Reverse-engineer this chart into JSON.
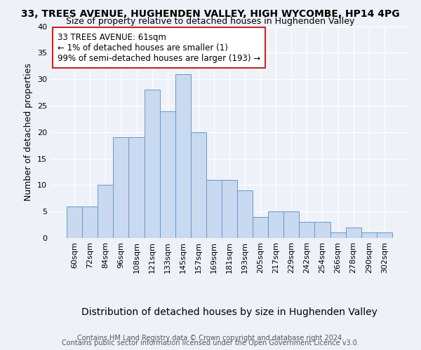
{
  "title": "33, TREES AVENUE, HUGHENDEN VALLEY, HIGH WYCOMBE, HP14 4PG",
  "subtitle": "Size of property relative to detached houses in Hughenden Valley",
  "xlabel": "Distribution of detached houses by size in Hughenden Valley",
  "ylabel": "Number of detached properties",
  "bin_labels": [
    "60sqm",
    "72sqm",
    "84sqm",
    "96sqm",
    "108sqm",
    "121sqm",
    "133sqm",
    "145sqm",
    "157sqm",
    "169sqm",
    "181sqm",
    "193sqm",
    "205sqm",
    "217sqm",
    "229sqm",
    "242sqm",
    "254sqm",
    "266sqm",
    "278sqm",
    "290sqm",
    "302sqm"
  ],
  "bar_values": [
    6,
    6,
    10,
    19,
    19,
    28,
    24,
    31,
    20,
    11,
    11,
    9,
    4,
    5,
    5,
    3,
    3,
    1,
    2,
    1,
    1
  ],
  "bar_color": "#c8d9f0",
  "bar_edge_color": "#6699cc",
  "highlight_color": "#cc2222",
  "ylim": [
    0,
    40
  ],
  "yticks": [
    0,
    5,
    10,
    15,
    20,
    25,
    30,
    35,
    40
  ],
  "annotation_lines": [
    "33 TREES AVENUE: 61sqm",
    "← 1% of detached houses are smaller (1)",
    "99% of semi-detached houses are larger (193) →"
  ],
  "footer_line1": "Contains HM Land Registry data © Crown copyright and database right 2024.",
  "footer_line2": "Contains public sector information licensed under the Open Government Licence v3.0.",
  "background_color": "#eef2f8",
  "grid_color": "#ffffff",
  "title_fontsize": 10,
  "subtitle_fontsize": 9,
  "ylabel_fontsize": 9,
  "xlabel_fontsize": 10,
  "tick_fontsize": 8,
  "annotation_fontsize": 8.5,
  "footer_fontsize": 7
}
